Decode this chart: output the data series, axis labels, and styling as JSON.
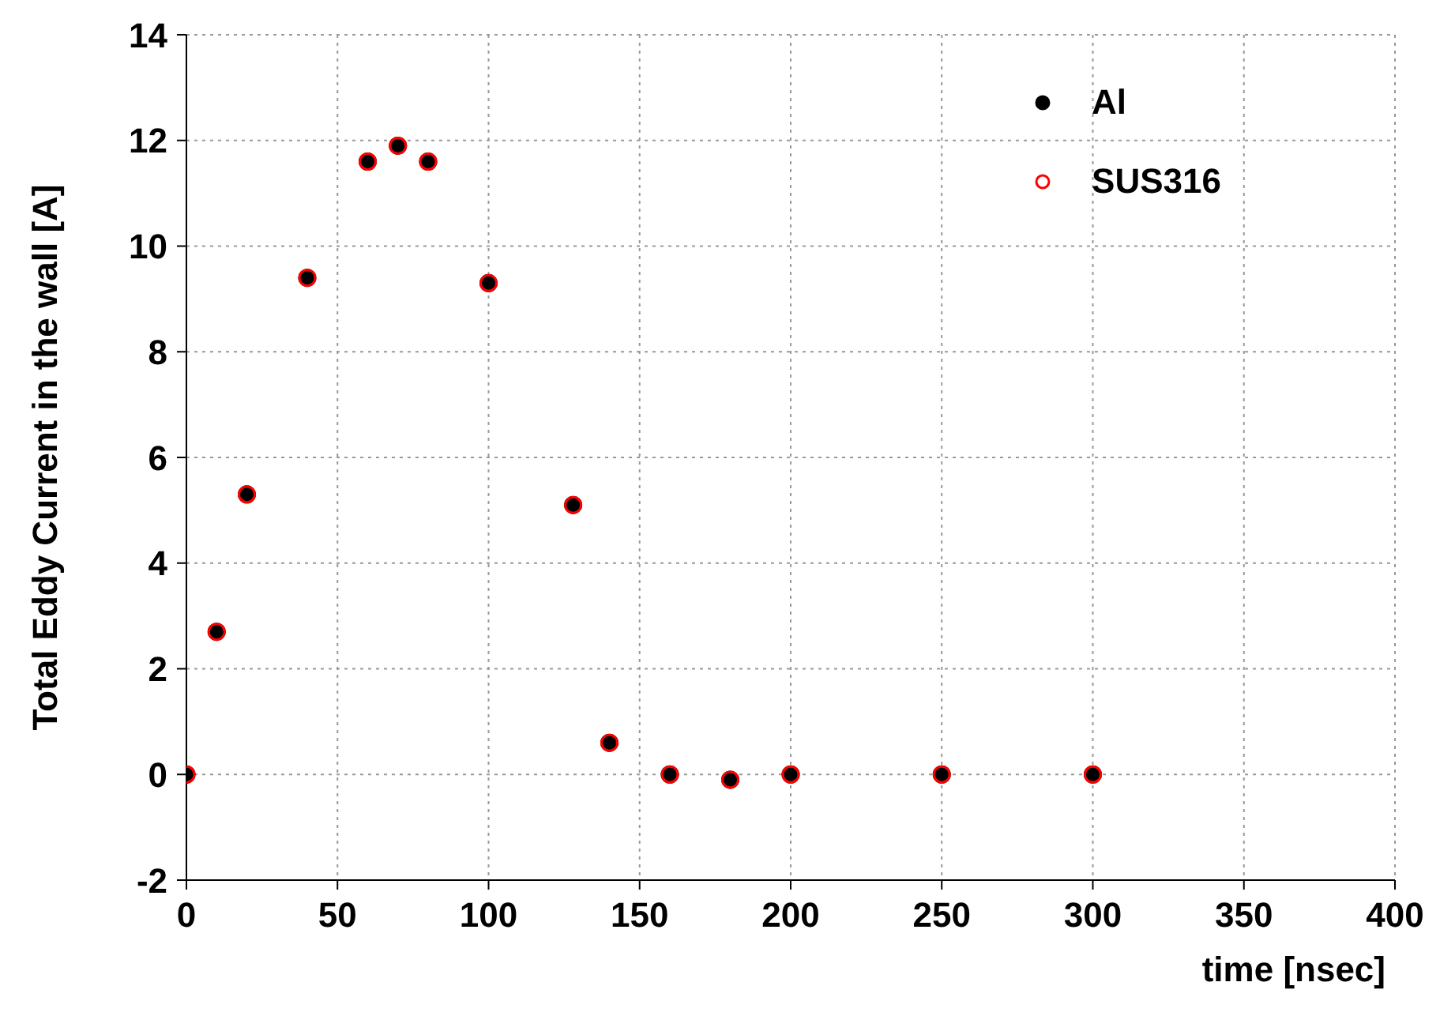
{
  "chart_data": {
    "type": "scatter",
    "xlabel": "time [nsec]",
    "ylabel": "Total Eddy Current in the wall [A]",
    "x": [
      0,
      10,
      20,
      40,
      60,
      70,
      80,
      100,
      128,
      140,
      160,
      180,
      200,
      250,
      300
    ],
    "series": [
      {
        "name": "Al",
        "color": "#000000",
        "values": [
          0,
          2.7,
          5.3,
          9.4,
          11.6,
          11.9,
          11.6,
          9.3,
          5.1,
          0.6,
          0,
          -0.1,
          0,
          0,
          0
        ]
      },
      {
        "name": "SUS316",
        "color": "#ff0000",
        "values": [
          0,
          2.7,
          5.3,
          9.4,
          11.6,
          11.9,
          11.6,
          9.3,
          5.1,
          0.6,
          0,
          -0.1,
          0,
          0,
          0
        ]
      }
    ],
    "xlim": [
      0,
      400
    ],
    "xticks": [
      0,
      50,
      100,
      150,
      200,
      250,
      300,
      350,
      400
    ],
    "ylim": [
      -2,
      14
    ],
    "yticks": [
      -2,
      0,
      2,
      4,
      6,
      8,
      10,
      12,
      14
    ],
    "grid": true,
    "legend": "top right",
    "marker": "circle"
  }
}
